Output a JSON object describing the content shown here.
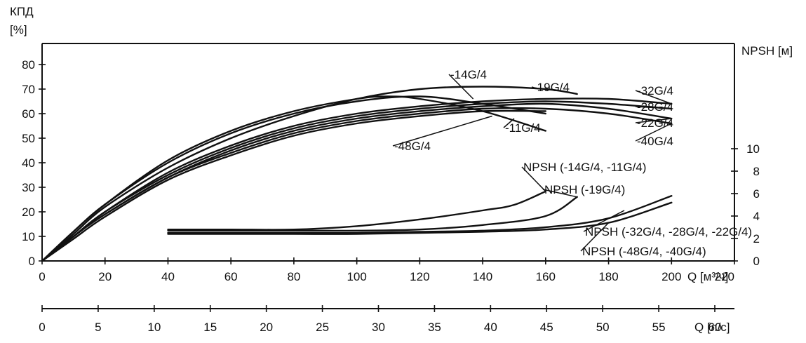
{
  "chart_data": {
    "type": "line",
    "left_axis": {
      "title_lines": [
        "КПД",
        "[%]"
      ],
      "ticks": [
        "0",
        "10",
        "20",
        "30",
        "40",
        "50",
        "60",
        "70",
        "80"
      ],
      "ylim": [
        0,
        85
      ]
    },
    "right_axis": {
      "title": "NPSH [м]",
      "ticks": [
        "0",
        "2",
        "4",
        "6",
        "8",
        "10"
      ],
      "ylim": [
        0,
        10
      ]
    },
    "x_axis": {
      "label": "Q [м³/ч]",
      "ticks": [
        "0",
        "20",
        "40",
        "60",
        "80",
        "100",
        "120",
        "140",
        "160",
        "180",
        "200",
        "220"
      ],
      "xlim": [
        0,
        220
      ]
    },
    "x2_axis": {
      "label": "Q [л/с]",
      "ticks": [
        "0",
        "5",
        "10",
        "15",
        "20",
        "25",
        "30",
        "35",
        "40",
        "45",
        "50",
        "55",
        "60"
      ],
      "xlim": [
        0,
        61.1
      ]
    },
    "efficiency_series": [
      {
        "name": "-14G/4",
        "x": [
          0,
          10,
          20,
          40,
          60,
          80,
          100,
          120,
          140,
          160
        ],
        "y": [
          0,
          12,
          23,
          40,
          52,
          60,
          65,
          67,
          64,
          60
        ]
      },
      {
        "name": "-11G/4",
        "x": [
          0,
          10,
          20,
          40,
          60,
          80,
          100,
          110,
          120,
          140,
          160
        ],
        "y": [
          0,
          12,
          23,
          41,
          53,
          61,
          66,
          67,
          66,
          61,
          53
        ]
      },
      {
        "name": "-19G/4",
        "x": [
          0,
          10,
          20,
          40,
          60,
          80,
          100,
          120,
          140,
          160,
          170
        ],
        "y": [
          0,
          11,
          22,
          38,
          50,
          59,
          66,
          70,
          71,
          70,
          68
        ]
      },
      {
        "name": "-32G/4",
        "x": [
          0,
          10,
          20,
          40,
          60,
          80,
          100,
          120,
          140,
          160,
          180,
          200
        ],
        "y": [
          0,
          10,
          20,
          36,
          47,
          55,
          60,
          63,
          65,
          66,
          66,
          64
        ]
      },
      {
        "name": "-28G/4",
        "x": [
          0,
          10,
          20,
          40,
          60,
          80,
          100,
          120,
          140,
          160,
          180,
          200
        ],
        "y": [
          0,
          10,
          20,
          35,
          46,
          54,
          59,
          62,
          64,
          65,
          64,
          62
        ]
      },
      {
        "name": "-22G/4",
        "x": [
          0,
          10,
          20,
          40,
          60,
          80,
          100,
          120,
          140,
          160,
          180,
          200
        ],
        "y": [
          0,
          10,
          19,
          34,
          45,
          53,
          58,
          61,
          63,
          64,
          62,
          58
        ]
      },
      {
        "name": "-40G/4",
        "x": [
          0,
          10,
          20,
          40,
          60,
          80,
          100,
          120,
          140,
          160,
          180,
          200
        ],
        "y": [
          0,
          10,
          19,
          34,
          44,
          52,
          57,
          60,
          62,
          62,
          60,
          56
        ]
      },
      {
        "name": "-48G/4",
        "x": [
          0,
          10,
          20,
          40,
          60,
          80,
          100,
          120,
          140,
          160
        ],
        "y": [
          0,
          9,
          18,
          33,
          43,
          51,
          56,
          59,
          61,
          61
        ]
      }
    ],
    "npsh_series": [
      {
        "name": "NPSH (-14G/4, -11G/4)",
        "x": [
          40,
          60,
          80,
          100,
          120,
          140,
          150,
          160
        ],
        "y": [
          2.8,
          2.8,
          2.8,
          3.1,
          3.7,
          4.5,
          5.0,
          6.2
        ]
      },
      {
        "name": "NPSH (-19G/4)",
        "x": [
          40,
          60,
          80,
          100,
          120,
          140,
          160,
          170
        ],
        "y": [
          2.7,
          2.7,
          2.7,
          2.7,
          2.8,
          3.2,
          4.0,
          5.7
        ]
      },
      {
        "name": "NPSH (-32G/4, -28G/4, -22G/4)",
        "x": [
          40,
          60,
          80,
          100,
          120,
          140,
          160,
          180,
          200
        ],
        "y": [
          2.5,
          2.5,
          2.5,
          2.5,
          2.6,
          2.7,
          3.0,
          3.8,
          5.8
        ]
      },
      {
        "name": "NPSH (-48G/4, -40G/4)",
        "x": [
          40,
          60,
          80,
          100,
          120,
          140,
          160,
          180,
          200
        ],
        "y": [
          2.4,
          2.4,
          2.4,
          2.4,
          2.5,
          2.6,
          2.8,
          3.4,
          5.2
        ]
      }
    ],
    "labels": [
      {
        "text": "-14G/4",
        "target": [
          137,
          66
        ],
        "axis": "left",
        "anchor": "up-right"
      },
      {
        "text": "-19G/4",
        "target": [
          158,
          70
        ],
        "axis": "left",
        "anchor": "right"
      },
      {
        "text": "-32G/4",
        "target": [
          200,
          64
        ],
        "axis": "left",
        "anchor": "right"
      },
      {
        "text": "-28G/4",
        "target": [
          200,
          62
        ],
        "axis": "left",
        "anchor": "right"
      },
      {
        "text": "-22G/4",
        "target": [
          200,
          58
        ],
        "axis": "left",
        "anchor": "right"
      },
      {
        "text": "-40G/4",
        "target": [
          200,
          56
        ],
        "axis": "left",
        "anchor": "right"
      },
      {
        "text": "-11G/4",
        "target": [
          150,
          58
        ],
        "axis": "left",
        "anchor": "down-right"
      },
      {
        "text": "-48G/4",
        "target": [
          143,
          59
        ],
        "axis": "left",
        "anchor": "down-left"
      },
      {
        "text": "NPSH (-14G/4, -11G/4)",
        "target": [
          160,
          6.2
        ],
        "axis": "right",
        "anchor": "up-right"
      },
      {
        "text": "NPSH (-19G/4)",
        "target": [
          170,
          5.7
        ],
        "axis": "right",
        "anchor": "up-right"
      },
      {
        "text": "NPSH (-32G/4, -28G/4, -22G/4)",
        "target": [
          185,
          4.5
        ],
        "axis": "right",
        "anchor": "down-right"
      },
      {
        "text": "NPSH (-48G/4, -40G/4)",
        "target": [
          180,
          3.4
        ],
        "axis": "right",
        "anchor": "down-right"
      }
    ],
    "grid": false
  }
}
